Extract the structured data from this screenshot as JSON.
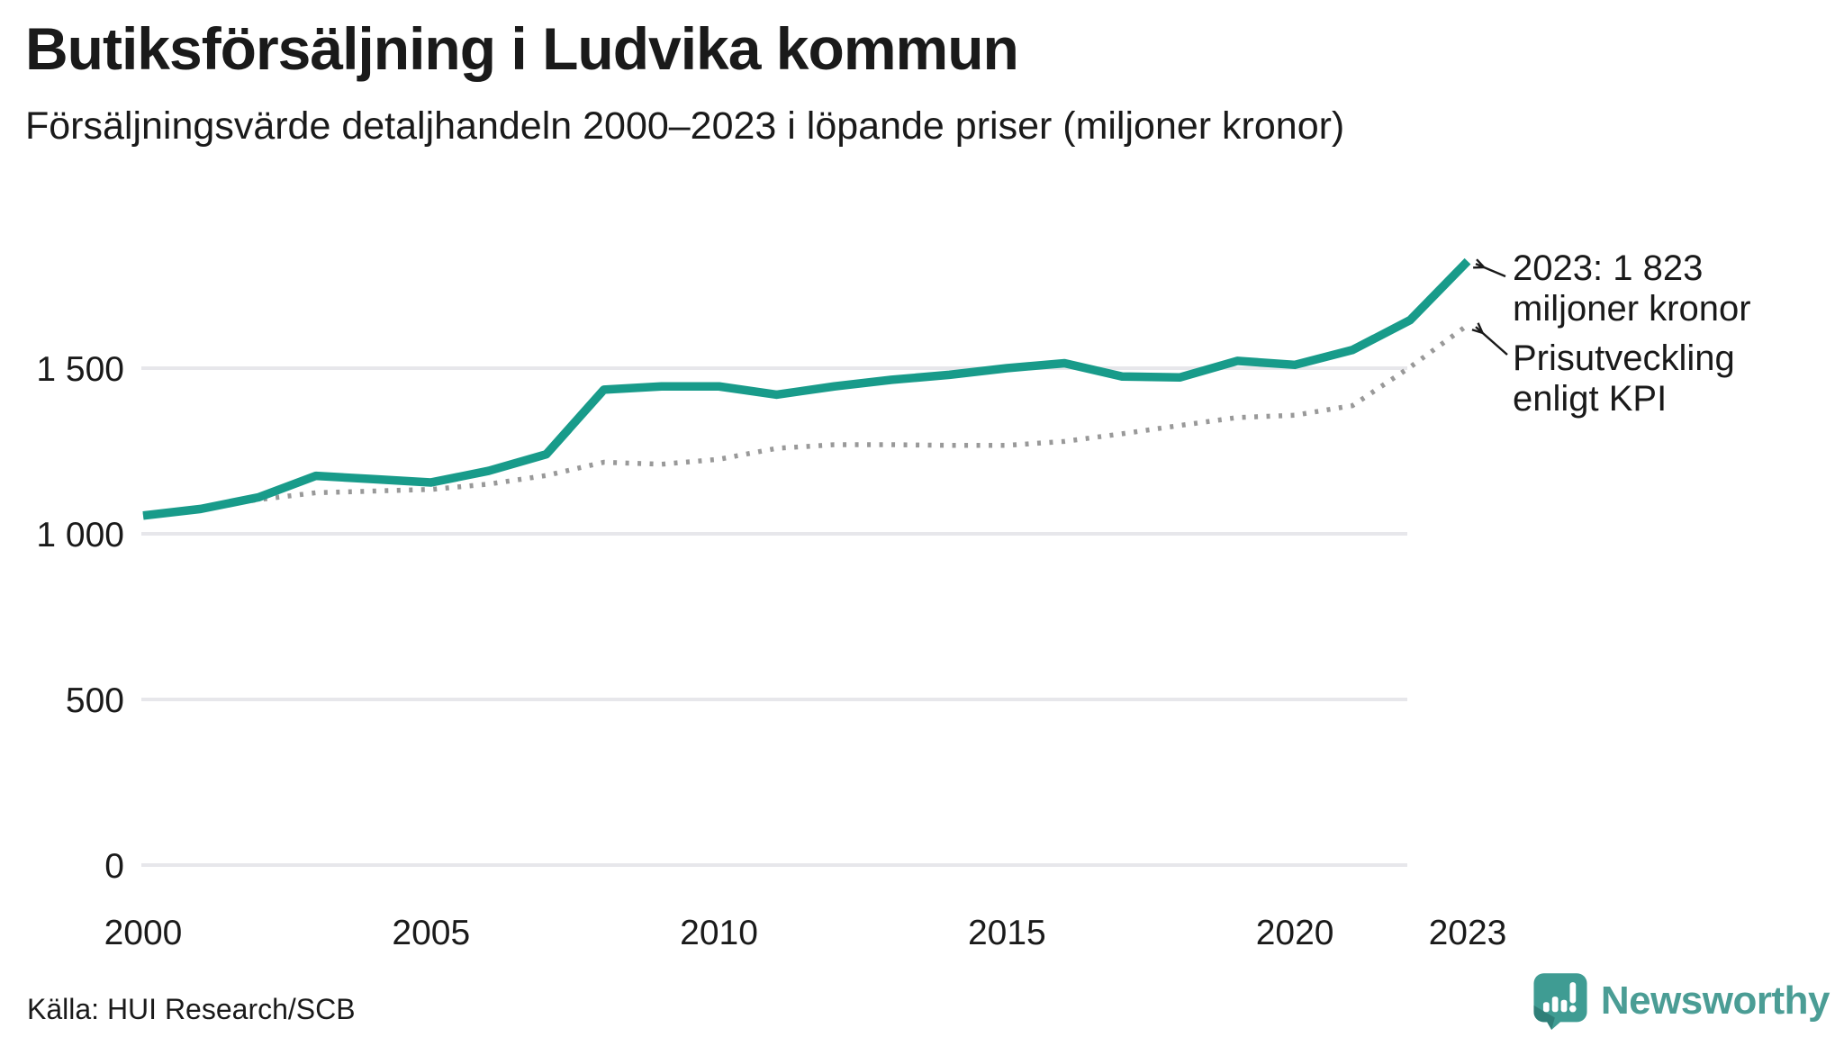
{
  "header": {
    "title": "Butiksförsäljning i Ludvika kommun",
    "subtitle": "Försäljningsvärde detaljhandeln 2000–2023 i löpande priser (miljoner kronor)"
  },
  "footer": {
    "source": "Källa: HUI Research/SCB",
    "brand": "Newsworthy"
  },
  "colors": {
    "sales_line": "#189b8a",
    "kpi_dots": "#999999",
    "grid": "#e7e7eb",
    "text": "#1a1a1a",
    "logo_bubble": "#3f9c93",
    "logo_tail": "#2f7f78",
    "brand_text": "#4b9d95"
  },
  "chart_data": {
    "type": "line",
    "title": "Butiksförsäljning i Ludvika kommun",
    "subtitle": "Försäljningsvärde detaljhandeln 2000–2023 i löpande priser (miljoner kronor)",
    "x": [
      2000,
      2001,
      2002,
      2003,
      2004,
      2005,
      2006,
      2007,
      2008,
      2009,
      2010,
      2011,
      2012,
      2013,
      2014,
      2015,
      2016,
      2017,
      2018,
      2019,
      2020,
      2021,
      2022,
      2023
    ],
    "series": [
      {
        "name": "Försäljningsvärde detaljhandeln (löpande priser)",
        "style": "solid",
        "values": [
          1055,
          1075,
          1110,
          1175,
          1165,
          1155,
          1190,
          1240,
          1435,
          1445,
          1445,
          1420,
          1445,
          1465,
          1480,
          1500,
          1515,
          1475,
          1472,
          1522,
          1510,
          1555,
          1645,
          1823
        ]
      },
      {
        "name": "Prisutveckling enligt KPI",
        "style": "dotted",
        "values": [
          1055,
          1080,
          1103,
          1124,
          1129,
          1134,
          1150,
          1176,
          1216,
          1210,
          1225,
          1258,
          1269,
          1269,
          1267,
          1267,
          1279,
          1302,
          1327,
          1351,
          1358,
          1387,
          1503,
          1630
        ]
      }
    ],
    "ylim": [
      0,
      1900
    ],
    "yticks": [
      0,
      500,
      1000,
      1500
    ],
    "ytick_labels": [
      "0",
      "500",
      "1 000",
      "1 500"
    ],
    "xticks": [
      2000,
      2005,
      2010,
      2015,
      2020,
      2023
    ],
    "xtick_labels": [
      "2000",
      "2005",
      "2010",
      "2015",
      "2020",
      "2023"
    ],
    "grid": "horizontal",
    "legend_position": "annotations",
    "annotations": [
      {
        "lines": [
          "2023: 1 823",
          "miljoner kronor"
        ],
        "series": 0,
        "year": 2023
      },
      {
        "lines": [
          "Prisutveckling",
          "enligt KPI"
        ],
        "series": 1,
        "year": 2023
      }
    ]
  }
}
